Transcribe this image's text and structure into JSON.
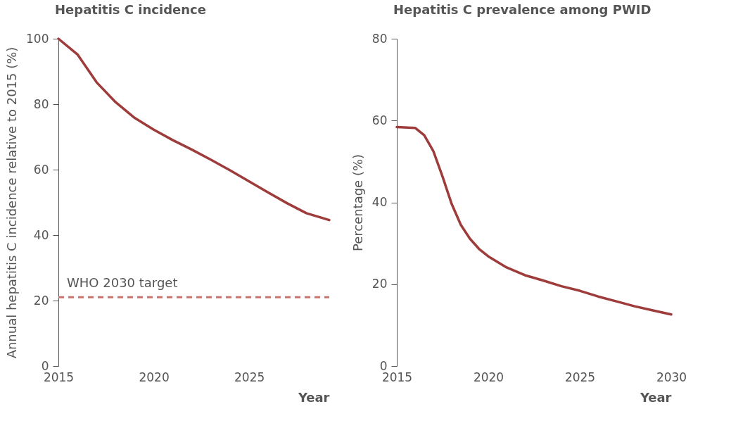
{
  "chart_data": [
    {
      "type": "line",
      "title": "Hepatitis C incidence",
      "xlabel": "Year",
      "ylabel": "Annual hepatitis C incidence relative to 2015 (%)",
      "x": [
        2015,
        2016,
        2017,
        2018,
        2019,
        2020,
        2021,
        2022,
        2023,
        2024,
        2025,
        2026,
        2027,
        2028,
        2029.2
      ],
      "series": [
        {
          "color": "#9e3b3b",
          "values": [
            100,
            95.2,
            86.7,
            80.6,
            75.8,
            72.2,
            69,
            66.1,
            63,
            59.8,
            56.4,
            53,
            49.7,
            46.7,
            44.6
          ]
        }
      ],
      "xlim": [
        2015,
        2029.2
      ],
      "xticks": [
        2015,
        2020,
        2025
      ],
      "ylim": [
        0,
        100
      ],
      "yticks": [
        0,
        20,
        40,
        60,
        80,
        100
      ],
      "ref_lines": [
        {
          "axis": "y",
          "value": 21,
          "label": "WHO 2030 target",
          "color": "#c8736e",
          "line_style": "dashed"
        }
      ],
      "grid": false,
      "marker": "none",
      "line_style": "solid"
    },
    {
      "type": "line",
      "title": "Hepatitis C prevalence among PWID",
      "xlabel": "Year",
      "ylabel": "Percentage (%)",
      "x": [
        2015,
        2016,
        2016.5,
        2017,
        2017.5,
        2018,
        2018.5,
        2019,
        2019.5,
        2020,
        2021,
        2022,
        2023,
        2024,
        2025,
        2026,
        2027,
        2028,
        2029,
        2030
      ],
      "series": [
        {
          "color": "#9e3b3b",
          "values": [
            58.4,
            58.2,
            56.4,
            52.5,
            46.3,
            39.6,
            34.5,
            31.1,
            28.6,
            26.8,
            24.1,
            22.2,
            20.9,
            19.5,
            18.4,
            17,
            15.8,
            14.6,
            13.6,
            12.6
          ]
        }
      ],
      "xlim": [
        2015,
        2030
      ],
      "xticks": [
        2015,
        2020,
        2025,
        2030
      ],
      "ylim": [
        0,
        80
      ],
      "yticks": [
        0,
        20,
        40,
        60,
        80
      ],
      "grid": false,
      "marker": "none",
      "line_style": "solid"
    }
  ]
}
